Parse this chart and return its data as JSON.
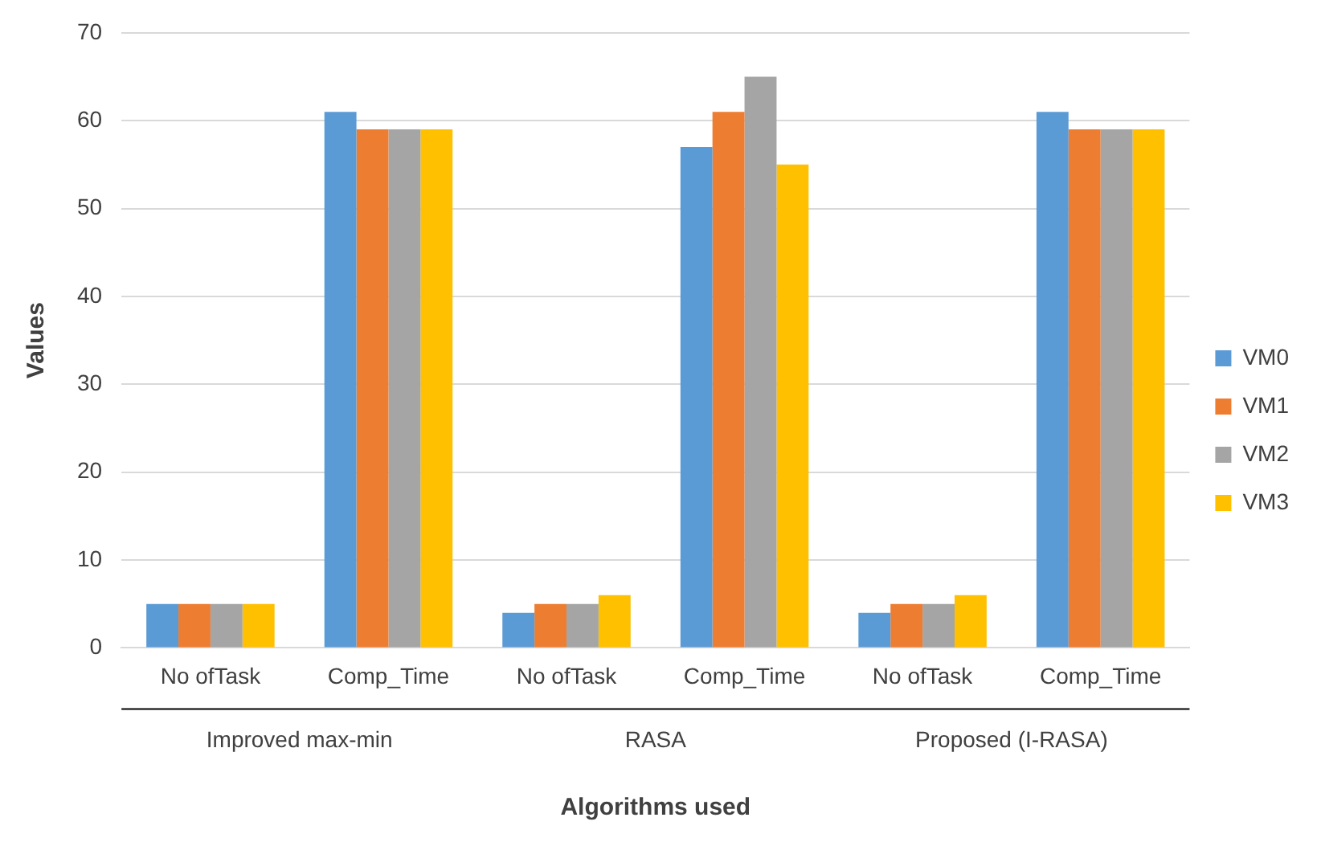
{
  "chart_data": {
    "type": "bar",
    "xlabel": "Algorithms used",
    "ylabel": "Values",
    "categories": [
      "No ofTask",
      "Comp_Time",
      "No ofTask",
      "Comp_Time",
      "No ofTask",
      "Comp_Time"
    ],
    "annotations": [
      "Improved max-min",
      "RASA",
      "Proposed (I-RASA)"
    ],
    "series": [
      {
        "name": "VM0",
        "color": "#5b9bd5",
        "values": [
          5,
          61,
          4,
          57,
          4,
          61
        ]
      },
      {
        "name": "VM1",
        "color": "#ed7d31",
        "values": [
          5,
          59,
          5,
          61,
          5,
          59
        ]
      },
      {
        "name": "VM2",
        "color": "#a5a5a5",
        "values": [
          5,
          59,
          5,
          65,
          5,
          59
        ]
      },
      {
        "name": "VM3",
        "color": "#ffc000",
        "values": [
          5,
          59,
          6,
          55,
          6,
          59
        ]
      }
    ],
    "ylim": [
      0,
      70
    ],
    "yticks": [
      0,
      10,
      20,
      30,
      40,
      50,
      60,
      70
    ],
    "grid": "y",
    "legend": "right"
  }
}
